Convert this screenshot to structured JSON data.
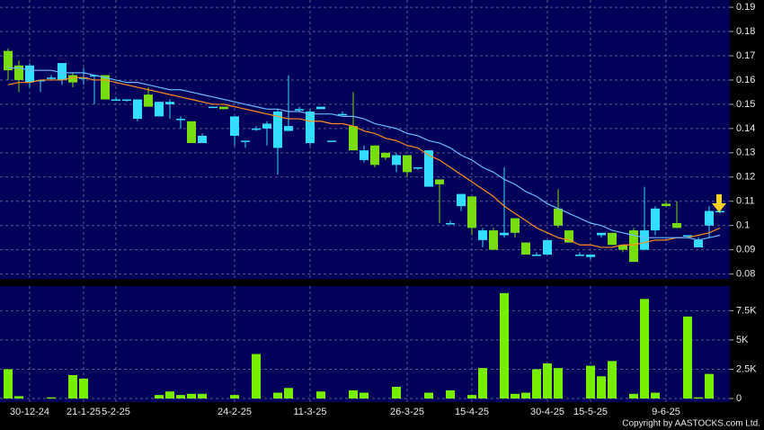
{
  "chart_data": [
    {
      "type": "candlestick",
      "categories": [
        null,
        null,
        "30-12-24",
        null,
        null,
        null,
        null,
        "21-1-25",
        null,
        null,
        "5-2-25",
        null,
        null,
        null,
        null,
        null,
        null,
        null,
        null,
        null,
        null,
        "24-2-25",
        null,
        null,
        null,
        null,
        null,
        null,
        "11-3-25",
        null,
        null,
        null,
        null,
        null,
        null,
        null,
        null,
        "26-3-25",
        null,
        null,
        null,
        null,
        null,
        "15-4-25",
        null,
        null,
        null,
        null,
        null,
        null,
        "30-4-25",
        null,
        null,
        null,
        "15-5-25",
        null,
        null,
        null,
        null,
        null,
        null,
        "9-6-25",
        null,
        null,
        null,
        null,
        null
      ],
      "open": [
        0.172,
        0.166,
        0.159,
        0.16,
        0.161,
        0.16,
        0.162,
        0.161,
        0.162,
        0.162,
        0.152,
        0.152,
        0.144,
        0.154,
        0.145,
        0.15,
        0.144,
        0.143,
        0.134,
        0.149,
        0.149,
        0.137,
        0.135,
        0.14,
        0.14,
        0.132,
        0.139,
        0.148,
        0.134,
        0.148,
        0.135,
        0.146,
        0.141,
        0.127,
        0.133,
        0.13,
        0.125,
        0.129,
        0.124,
        0.116,
        0.119,
        0.101,
        0.108,
        0.112,
        0.094,
        0.098,
        0.096,
        0.103,
        0.093,
        0.088,
        0.088,
        0.107,
        0.098,
        0.088,
        0.087,
        0.096,
        0.097,
        0.092,
        0.098,
        0.09,
        0.098,
        0.109,
        0.101,
        0.096,
        0.091,
        0.1,
        0.106
      ],
      "high": [
        0.173,
        0.168,
        0.167,
        0.16,
        0.162,
        0.167,
        0.163,
        0.165,
        0.162,
        0.162,
        0.153,
        0.152,
        0.152,
        0.157,
        0.151,
        0.152,
        0.145,
        0.143,
        0.138,
        0.149,
        0.149,
        0.145,
        0.135,
        0.141,
        0.143,
        0.148,
        0.162,
        0.149,
        0.148,
        0.149,
        0.135,
        0.147,
        0.155,
        0.133,
        0.133,
        0.13,
        0.13,
        0.129,
        0.124,
        0.131,
        0.119,
        0.102,
        0.113,
        0.112,
        0.099,
        0.099,
        0.124,
        0.103,
        0.093,
        0.089,
        0.094,
        0.115,
        0.098,
        0.089,
        0.088,
        0.097,
        0.097,
        0.092,
        0.099,
        0.116,
        0.108,
        0.11,
        0.11,
        0.096,
        0.095,
        0.108,
        0.107
      ],
      "low": [
        0.16,
        0.155,
        0.157,
        0.155,
        0.16,
        0.158,
        0.157,
        0.158,
        0.15,
        0.152,
        0.152,
        0.151,
        0.143,
        0.149,
        0.145,
        0.144,
        0.14,
        0.134,
        0.134,
        0.149,
        0.148,
        0.133,
        0.132,
        0.139,
        0.133,
        0.121,
        0.139,
        0.147,
        0.133,
        0.148,
        0.135,
        0.146,
        0.131,
        0.126,
        0.124,
        0.127,
        0.122,
        0.12,
        0.123,
        0.116,
        0.101,
        0.101,
        0.106,
        0.096,
        0.091,
        0.09,
        0.095,
        0.095,
        0.088,
        0.088,
        0.088,
        0.099,
        0.093,
        0.088,
        0.086,
        0.095,
        0.092,
        0.089,
        0.085,
        0.09,
        0.096,
        0.108,
        0.099,
        0.095,
        0.091,
        0.095,
        0.105
      ],
      "close": [
        0.164,
        0.16,
        0.166,
        0.16,
        0.161,
        0.167,
        0.159,
        0.161,
        0.162,
        0.152,
        0.152,
        0.152,
        0.152,
        0.149,
        0.151,
        0.151,
        0.144,
        0.134,
        0.137,
        0.149,
        0.148,
        0.145,
        0.135,
        0.14,
        0.142,
        0.147,
        0.141,
        0.148,
        0.147,
        0.149,
        0.135,
        0.146,
        0.131,
        0.131,
        0.125,
        0.128,
        0.129,
        0.122,
        0.124,
        0.131,
        0.117,
        0.101,
        0.113,
        0.099,
        0.098,
        0.09,
        0.097,
        0.097,
        0.088,
        0.088,
        0.094,
        0.1,
        0.093,
        0.088,
        0.088,
        0.097,
        0.092,
        0.09,
        0.085,
        0.098,
        0.107,
        0.108,
        0.099,
        0.096,
        0.094,
        0.106,
        0.106
      ],
      "up_color": "#33ddff",
      "down_color": "#77dd11",
      "series": [
        {
          "color": "#ff8c1a",
          "values": [
            0.158,
            0.159,
            0.159,
            0.16,
            0.16,
            0.16,
            0.161,
            0.161,
            0.16,
            0.16,
            0.159,
            0.158,
            0.157,
            0.156,
            0.155,
            0.154,
            0.153,
            0.152,
            0.151,
            0.15,
            0.15,
            0.149,
            0.148,
            0.147,
            0.146,
            0.145,
            0.144,
            0.144,
            0.143,
            0.143,
            0.142,
            0.142,
            0.141,
            0.139,
            0.138,
            0.136,
            0.135,
            0.133,
            0.132,
            0.129,
            0.127,
            0.124,
            0.121,
            0.118,
            0.115,
            0.112,
            0.108,
            0.105,
            0.102,
            0.099,
            0.097,
            0.095,
            0.094,
            0.092,
            0.092,
            0.091,
            0.091,
            0.092,
            0.092,
            0.093,
            0.094,
            0.094,
            0.095,
            0.095,
            0.096,
            0.097,
            0.099
          ]
        },
        {
          "color": "#66bbff",
          "values": [
            0.165,
            0.165,
            0.164,
            0.164,
            0.164,
            0.163,
            0.163,
            0.163,
            0.162,
            0.161,
            0.16,
            0.159,
            0.159,
            0.158,
            0.157,
            0.156,
            0.156,
            0.155,
            0.154,
            0.153,
            0.152,
            0.151,
            0.15,
            0.149,
            0.148,
            0.148,
            0.147,
            0.147,
            0.146,
            0.146,
            0.146,
            0.145,
            0.145,
            0.144,
            0.142,
            0.141,
            0.14,
            0.138,
            0.137,
            0.135,
            0.134,
            0.132,
            0.129,
            0.127,
            0.124,
            0.122,
            0.119,
            0.117,
            0.114,
            0.112,
            0.109,
            0.107,
            0.105,
            0.103,
            0.101,
            0.1,
            0.098,
            0.097,
            0.096,
            0.095,
            0.095,
            0.095,
            0.095,
            0.095,
            0.094,
            0.095,
            0.096
          ]
        }
      ],
      "ylim": [
        0.078,
        0.193
      ],
      "yticks": [
        0.08,
        0.09,
        0.1,
        0.11,
        0.12,
        0.13,
        0.14,
        0.15,
        0.16,
        0.17,
        0.18,
        0.19
      ],
      "grid": true
    },
    {
      "type": "bar",
      "values": [
        2500,
        200,
        0,
        0,
        100,
        0,
        2000,
        1700,
        0,
        0,
        0,
        0,
        0,
        0,
        300,
        600,
        300,
        400,
        400,
        0,
        0,
        300,
        0,
        3800,
        0,
        500,
        900,
        0,
        0,
        600,
        0,
        0,
        700,
        500,
        0,
        0,
        1000,
        0,
        0,
        500,
        0,
        700,
        0,
        300,
        2600,
        0,
        9000,
        400,
        500,
        2500,
        3000,
        2600,
        0,
        0,
        2800,
        1900,
        3200,
        0,
        400,
        8500,
        500,
        0,
        0,
        7000,
        100,
        2100,
        0
      ],
      "color": "#77ee00",
      "ylim": [
        0,
        9600
      ],
      "yticks": [
        0,
        {
          "value": 2500,
          "label": "2.5K"
        },
        {
          "value": 5000,
          "label": "5K"
        },
        {
          "value": 7500,
          "label": "7.5K"
        }
      ],
      "grid": true
    }
  ],
  "footer": "Copyright by AASTOCKS.com Ltd."
}
